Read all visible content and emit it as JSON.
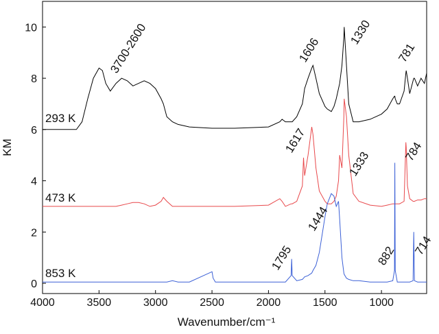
{
  "chart_data": {
    "type": "line",
    "x_label": "Wavenumber/cm⁻¹",
    "y_label": "KM",
    "xlim": [
      4000,
      600
    ],
    "ylim": [
      -0.4,
      11
    ],
    "xticks": [
      4000,
      3500,
      3000,
      2500,
      2000,
      1500,
      1000
    ],
    "yticks": [
      0,
      2,
      4,
      6,
      8,
      10
    ],
    "grid": false,
    "x": [
      4000,
      3800,
      3700,
      3650,
      3600,
      3550,
      3500,
      3470,
      3440,
      3400,
      3350,
      3300,
      3250,
      3200,
      3150,
      3100,
      3050,
      3000,
      2950,
      2930,
      2900,
      2850,
      2800,
      2700,
      2500,
      2490,
      2470,
      2300,
      2000,
      1900,
      1880,
      1850,
      1800,
      1795,
      1790,
      1750,
      1700,
      1690,
      1680,
      1650,
      1617,
      1606,
      1580,
      1550,
      1500,
      1480,
      1444,
      1420,
      1400,
      1380,
      1370,
      1350,
      1333,
      1330,
      1310,
      1290,
      1250,
      1200,
      1100,
      1000,
      950,
      900,
      885,
      882,
      878,
      860,
      840,
      800,
      784,
      781,
      770,
      750,
      720,
      714,
      708,
      680,
      650,
      620,
      600
    ],
    "series": [
      {
        "name": "293 K",
        "color": "#000000",
        "values": [
          6,
          6,
          6,
          6.3,
          7.2,
          8.0,
          8.4,
          8.3,
          7.8,
          7.5,
          7.8,
          8.0,
          7.9,
          7.7,
          7.8,
          7.9,
          7.8,
          7.6,
          7.2,
          7.0,
          6.5,
          6.3,
          6.2,
          6.1,
          6.05,
          6.05,
          6.05,
          6.05,
          6.1,
          6.3,
          6.4,
          6.3,
          6.3,
          6.3,
          6.3,
          6.5,
          7.0,
          7.3,
          7.6,
          8.0,
          8.4,
          8.5,
          8.0,
          7.4,
          6.9,
          6.8,
          6.7,
          6.9,
          7.2,
          7.6,
          7.8,
          8.5,
          9.6,
          10.0,
          8.5,
          7.0,
          6.3,
          6.3,
          6.4,
          6.6,
          6.8,
          7.2,
          7.3,
          7.3,
          7.2,
          7.0,
          7.0,
          7.5,
          8.2,
          8.3,
          8.0,
          7.4,
          7.9,
          8.0,
          8.0,
          7.7,
          8.0,
          7.8,
          8.2
        ]
      },
      {
        "name": "473 K",
        "color": "#e8474a",
        "values": [
          3,
          3,
          3,
          3,
          3,
          3,
          3,
          3,
          3,
          3,
          3,
          3.05,
          3.1,
          3.15,
          3.15,
          3.1,
          3.0,
          3.05,
          3.2,
          3.35,
          3.2,
          3.0,
          3.0,
          3.0,
          3.0,
          3.0,
          3.0,
          3.0,
          3.05,
          3.3,
          3.2,
          3.0,
          3.1,
          3.1,
          3.1,
          3.2,
          3.8,
          4.9,
          4.2,
          5.0,
          6.1,
          5.8,
          4.5,
          3.6,
          3.2,
          3.1,
          3.1,
          3.2,
          3.4,
          4.0,
          5.0,
          4.5,
          6.5,
          7.2,
          6.5,
          5.0,
          3.5,
          3.2,
          3.05,
          3.0,
          3.05,
          3.1,
          3.1,
          3.1,
          3.1,
          3.1,
          3.1,
          3.2,
          5.5,
          5.3,
          3.8,
          3.3,
          3.2,
          3.2,
          3.2,
          3.25,
          3.25,
          3.3,
          3.3
        ]
      },
      {
        "name": "853 K",
        "color": "#3a5fd6",
        "values": [
          0.05,
          0.05,
          0.05,
          0.05,
          0.05,
          0.05,
          0.05,
          0.05,
          0.05,
          0.05,
          0.05,
          0.05,
          0.05,
          0.05,
          0.05,
          0.05,
          0.05,
          0.05,
          0.05,
          0.05,
          0.05,
          0.1,
          0.05,
          0.05,
          0.45,
          0.2,
          0.05,
          0.05,
          0.05,
          0.05,
          0.05,
          0.05,
          0.3,
          0.95,
          0.3,
          0.1,
          0.15,
          0.2,
          0.25,
          0.3,
          0.4,
          0.5,
          0.7,
          1.2,
          2.6,
          3.1,
          3.5,
          3.4,
          3.0,
          3.2,
          2.5,
          1.0,
          0.4,
          0.35,
          0.2,
          0.15,
          0.1,
          0.1,
          0.05,
          0.05,
          0.05,
          0.1,
          0.5,
          4.7,
          0.5,
          0.05,
          0.05,
          0.05,
          0.05,
          0.05,
          0.05,
          0.05,
          0.1,
          2.0,
          0.1,
          0.05,
          0.05,
          0.05,
          0.05
        ]
      }
    ],
    "annotations": [
      "3700-2600",
      "1606",
      "1330",
      "781",
      "1617",
      "1333",
      "784",
      "1444",
      "1795",
      "882",
      "714"
    ]
  }
}
